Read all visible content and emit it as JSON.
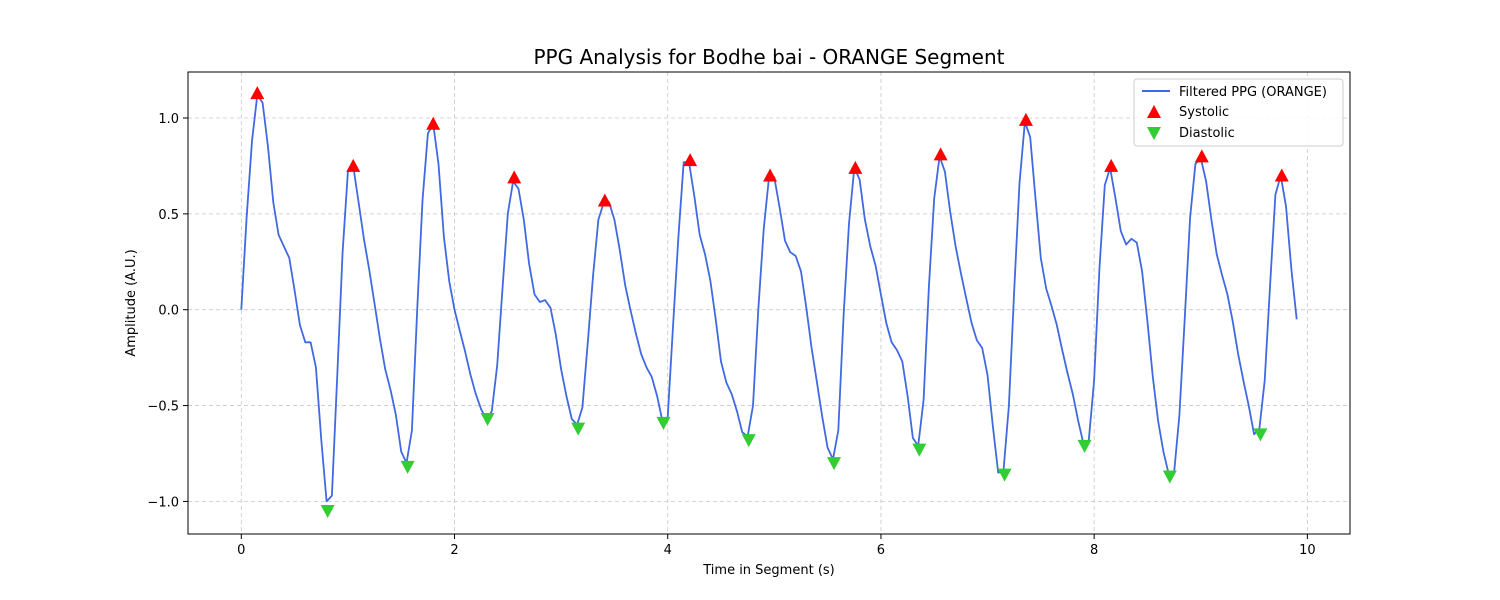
{
  "chart_data": {
    "type": "line",
    "title": "PPG Analysis for Bodhe bai - ORANGE Segment",
    "xlabel": "Time in Segment (s)",
    "ylabel": "Amplitude (A.U.)",
    "xlim": [
      -0.5,
      10.4
    ],
    "ylim": [
      -1.17,
      1.24
    ],
    "xticks": [
      0,
      2,
      4,
      6,
      8,
      10
    ],
    "xtick_labels": [
      "0",
      "2",
      "4",
      "6",
      "8",
      "10"
    ],
    "yticks": [
      -1.0,
      -0.5,
      0.0,
      0.5,
      1.0
    ],
    "ytick_labels": [
      "−1.0",
      "−0.5",
      "0.0",
      "0.5",
      "1.0"
    ],
    "grid": true,
    "legend_position": "top-right",
    "series": [
      {
        "name": "Filtered PPG (ORANGE)",
        "color": "#4169e1",
        "x": [
          0,
          0.05,
          0.1,
          0.15,
          0.2,
          0.25,
          0.3,
          0.35,
          0.4,
          0.45,
          0.5,
          0.55,
          0.6,
          0.65,
          0.7,
          0.75,
          0.8,
          0.85,
          0.9,
          0.95,
          1.0,
          1.05,
          1.1,
          1.15,
          1.2,
          1.25,
          1.3,
          1.35,
          1.4,
          1.45,
          1.5,
          1.55,
          1.6,
          1.65,
          1.7,
          1.75,
          1.8,
          1.85,
          1.9,
          1.95,
          2.0,
          2.05,
          2.1,
          2.15,
          2.2,
          2.25,
          2.3,
          2.35,
          2.4,
          2.45,
          2.5,
          2.55,
          2.6,
          2.65,
          2.7,
          2.75,
          2.8,
          2.85,
          2.9,
          2.95,
          3.0,
          3.05,
          3.1,
          3.15,
          3.2,
          3.25,
          3.3,
          3.35,
          3.4,
          3.45,
          3.5,
          3.55,
          3.6,
          3.65,
          3.7,
          3.75,
          3.8,
          3.85,
          3.9,
          3.95,
          4.0,
          4.05,
          4.1,
          4.15,
          4.2,
          4.25,
          4.3,
          4.35,
          4.4,
          4.45,
          4.5,
          4.55,
          4.6,
          4.65,
          4.7,
          4.75,
          4.8,
          4.85,
          4.9,
          4.95,
          5.0,
          5.05,
          5.1,
          5.15,
          5.2,
          5.25,
          5.3,
          5.35,
          5.4,
          5.45,
          5.5,
          5.55,
          5.6,
          5.65,
          5.7,
          5.75,
          5.8,
          5.85,
          5.9,
          5.95,
          6.0,
          6.05,
          6.1,
          6.15,
          6.2,
          6.25,
          6.3,
          6.35,
          6.4,
          6.45,
          6.5,
          6.55,
          6.6,
          6.65,
          6.7,
          6.75,
          6.8,
          6.85,
          6.9,
          6.95,
          7.0,
          7.05,
          7.1,
          7.15,
          7.2,
          7.25,
          7.3,
          7.35,
          7.4,
          7.45,
          7.5,
          7.55,
          7.6,
          7.65,
          7.7,
          7.75,
          7.8,
          7.85,
          7.9,
          7.95,
          8.0,
          8.05,
          8.1,
          8.15,
          8.2,
          8.25,
          8.3,
          8.35,
          8.4,
          8.45,
          8.5,
          8.55,
          8.6,
          8.65,
          8.7,
          8.75,
          8.8,
          8.85,
          8.9,
          8.95,
          9.0,
          9.05,
          9.1,
          9.15,
          9.2,
          9.25,
          9.3,
          9.35,
          9.4,
          9.45,
          9.5,
          9.55,
          9.6,
          9.65,
          9.7,
          9.75,
          9.8,
          9.85,
          9.9
        ],
        "y": [
          0.0,
          0.48,
          0.88,
          1.12,
          1.08,
          0.85,
          0.56,
          0.39,
          0.33,
          0.27,
          0.1,
          -0.08,
          -0.17,
          -0.17,
          -0.3,
          -0.68,
          -1.0,
          -0.97,
          -0.35,
          0.3,
          0.72,
          0.75,
          0.56,
          0.37,
          0.21,
          0.03,
          -0.15,
          -0.31,
          -0.42,
          -0.55,
          -0.74,
          -0.8,
          -0.63,
          0.0,
          0.57,
          0.92,
          0.97,
          0.76,
          0.38,
          0.15,
          0.0,
          -0.11,
          -0.22,
          -0.34,
          -0.44,
          -0.52,
          -0.57,
          -0.53,
          -0.29,
          0.11,
          0.5,
          0.67,
          0.63,
          0.47,
          0.24,
          0.08,
          0.04,
          0.05,
          0.01,
          -0.13,
          -0.31,
          -0.45,
          -0.57,
          -0.6,
          -0.51,
          -0.17,
          0.18,
          0.47,
          0.56,
          0.56,
          0.47,
          0.31,
          0.13,
          0.0,
          -0.12,
          -0.23,
          -0.3,
          -0.35,
          -0.45,
          -0.58,
          -0.56,
          -0.08,
          0.38,
          0.77,
          0.77,
          0.59,
          0.39,
          0.29,
          0.15,
          -0.05,
          -0.27,
          -0.38,
          -0.44,
          -0.53,
          -0.64,
          -0.66,
          -0.5,
          0.0,
          0.42,
          0.69,
          0.69,
          0.53,
          0.36,
          0.3,
          0.28,
          0.2,
          0.01,
          -0.2,
          -0.38,
          -0.56,
          -0.72,
          -0.78,
          -0.63,
          -0.03,
          0.45,
          0.74,
          0.68,
          0.47,
          0.33,
          0.23,
          0.08,
          -0.07,
          -0.17,
          -0.21,
          -0.27,
          -0.45,
          -0.67,
          -0.71,
          -0.47,
          0.12,
          0.58,
          0.8,
          0.72,
          0.51,
          0.33,
          0.19,
          0.06,
          -0.07,
          -0.16,
          -0.2,
          -0.34,
          -0.61,
          -0.85,
          -0.84,
          -0.5,
          0.1,
          0.66,
          0.98,
          0.9,
          0.58,
          0.27,
          0.11,
          0.02,
          -0.08,
          -0.21,
          -0.33,
          -0.44,
          -0.58,
          -0.7,
          -0.68,
          -0.37,
          0.22,
          0.65,
          0.74,
          0.58,
          0.41,
          0.34,
          0.37,
          0.35,
          0.2,
          -0.06,
          -0.35,
          -0.58,
          -0.74,
          -0.86,
          -0.85,
          -0.55,
          -0.04,
          0.48,
          0.76,
          0.79,
          0.67,
          0.47,
          0.29,
          0.18,
          0.08,
          -0.06,
          -0.23,
          -0.37,
          -0.5,
          -0.65,
          -0.62,
          -0.37,
          0.12,
          0.6,
          0.7,
          0.54,
          0.21,
          -0.05
        ]
      },
      {
        "name": "Systolic",
        "color": "#ff0000",
        "marker": "triangle-up",
        "x": [
          0.15,
          1.05,
          1.8,
          2.56,
          3.41,
          4.21,
          4.96,
          5.76,
          6.56,
          7.36,
          8.16,
          9.01,
          9.76
        ],
        "y": [
          1.13,
          0.75,
          0.97,
          0.69,
          0.57,
          0.78,
          0.7,
          0.74,
          0.81,
          0.99,
          0.75,
          0.8,
          0.7
        ]
      },
      {
        "name": "Diastolic",
        "color": "#32cd32",
        "marker": "triangle-down",
        "x": [
          0.81,
          1.56,
          2.31,
          3.16,
          3.96,
          4.76,
          5.56,
          6.36,
          7.16,
          7.91,
          8.71,
          9.56
        ],
        "y": [
          -1.05,
          -0.82,
          -0.57,
          -0.62,
          -0.59,
          -0.68,
          -0.8,
          -0.73,
          -0.86,
          -0.71,
          -0.87,
          -0.65
        ]
      }
    ]
  }
}
